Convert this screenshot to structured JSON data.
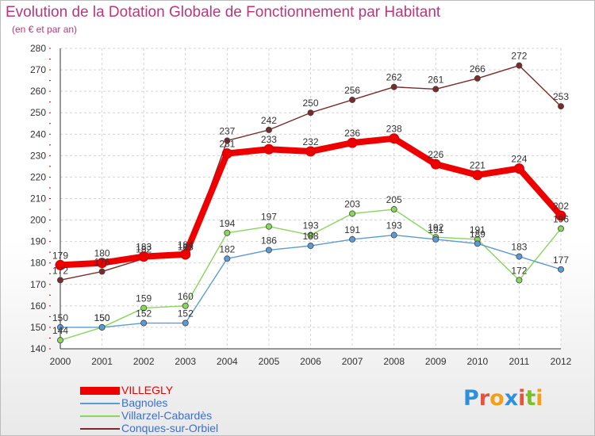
{
  "header": {
    "title": "Evolution de la Dotation Globale de Fonctionnement par Habitant",
    "subtitle": "(en € et par an)"
  },
  "logo": {
    "text": "Proxiti",
    "letter_colors": [
      "#2f8fd8",
      "#e5533d",
      "#f2a019",
      "#2f8fd8",
      "#e5533d",
      "#7bbf2a",
      "#f2a019"
    ]
  },
  "chart_data": {
    "type": "line",
    "title": "Evolution de la Dotation Globale de Fonctionnement par Habitant",
    "subtitle": "(en € et par an)",
    "xlabel": "",
    "ylabel": "",
    "ylim": [
      140,
      280
    ],
    "y_ticks": [
      140,
      150,
      160,
      170,
      180,
      190,
      200,
      210,
      220,
      230,
      240,
      250,
      260,
      270,
      280
    ],
    "grid": true,
    "legend_position": "bottom-left",
    "categories": [
      "2000",
      "2001",
      "2002",
      "2003",
      "2004",
      "2005",
      "2006",
      "2007",
      "2008",
      "2009",
      "2010",
      "2011",
      "2012"
    ],
    "series": [
      {
        "name": "Conques-sur-Orbiel",
        "color": "#7a2a2a",
        "emphasis": false,
        "values": [
          172,
          176,
          182,
          183,
          237,
          242,
          250,
          256,
          262,
          261,
          266,
          272,
          253
        ]
      },
      {
        "name": "Villarzel-Cabardès",
        "color": "#88d65a",
        "emphasis": false,
        "values": [
          144,
          150,
          159,
          160,
          194,
          197,
          193,
          203,
          205,
          192,
          191,
          172,
          196
        ]
      },
      {
        "name": "Bagnoles",
        "color": "#5b9bd5",
        "emphasis": false,
        "values": [
          150,
          150,
          152,
          152,
          182,
          186,
          188,
          191,
          193,
          191,
          189,
          183,
          177
        ]
      },
      {
        "name": "VILLEGLY",
        "color": "#ee0000",
        "emphasis": true,
        "values": [
          179,
          180,
          183,
          184,
          231,
          233,
          232,
          236,
          238,
          226,
          221,
          224,
          202
        ]
      }
    ]
  },
  "legend": {
    "items": [
      {
        "label": "VILLEGLY",
        "color": "#ee0000",
        "text_color": "#ee0000",
        "line": "thick"
      },
      {
        "label": "Bagnoles",
        "color": "#5b9bd5",
        "text_color": "#3a6fd0",
        "line": "thin"
      },
      {
        "label": "Villarzel-Cabardès",
        "color": "#88d65a",
        "text_color": "#3a6fd0",
        "line": "thin"
      },
      {
        "label": "Conques-sur-Orbiel",
        "color": "#7a2a2a",
        "text_color": "#3a6fd0",
        "line": "thin"
      }
    ]
  }
}
